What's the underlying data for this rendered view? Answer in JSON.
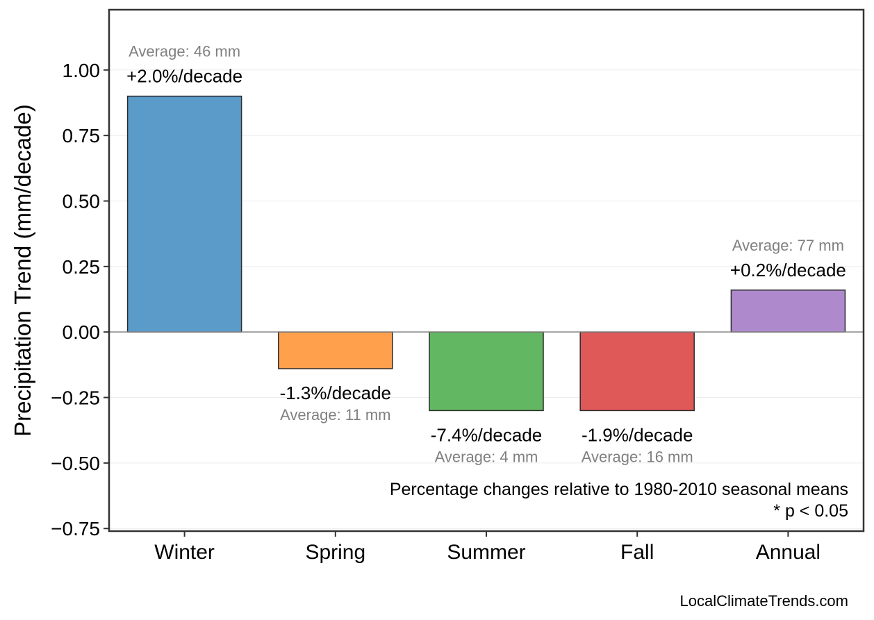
{
  "chart_data": {
    "type": "bar",
    "categories": [
      "Winter",
      "Spring",
      "Summer",
      "Fall",
      "Annual"
    ],
    "values": [
      0.9,
      -0.14,
      -0.3,
      -0.3,
      0.16
    ],
    "colors": [
      "#5b9bca",
      "#ffa04d",
      "#62b862",
      "#df5959",
      "#ae8acd"
    ],
    "pct_labels": [
      "+2.0%/decade",
      "-1.3%/decade",
      "-7.4%/decade",
      "-1.9%/decade",
      "+0.2%/decade"
    ],
    "avg_labels": [
      "Average: 46 mm",
      "Average: 11 mm",
      "Average: 4 mm",
      "Average: 16 mm",
      "Average: 77 mm"
    ],
    "ylabel": "Precipitation Trend (mm/decade)",
    "xlabel": "",
    "ylim": [
      -0.76,
      1.23
    ],
    "yticks": [
      1.0,
      0.75,
      0.5,
      0.25,
      0.0,
      -0.25,
      -0.5,
      -0.75
    ],
    "ytick_labels": [
      "1.00",
      "0.75",
      "0.50",
      "0.25",
      "0.00",
      "−0.25",
      "−0.50",
      "−0.75"
    ],
    "grid": "horizontal",
    "notes": [
      "Percentage changes relative to 1980-2010 seasonal means",
      "* p < 0.05"
    ]
  },
  "footer": "LocalClimateTrends.com"
}
